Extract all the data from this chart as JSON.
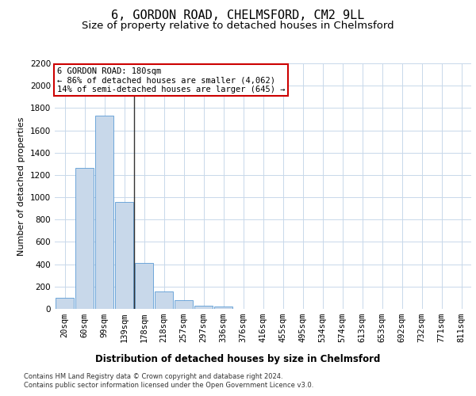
{
  "title": "6, GORDON ROAD, CHELMSFORD, CM2 9LL",
  "subtitle": "Size of property relative to detached houses in Chelmsford",
  "xlabel": "Distribution of detached houses by size in Chelmsford",
  "ylabel": "Number of detached properties",
  "footnote1": "Contains HM Land Registry data © Crown copyright and database right 2024.",
  "footnote2": "Contains public sector information licensed under the Open Government Licence v3.0.",
  "categories": [
    "20sqm",
    "60sqm",
    "99sqm",
    "139sqm",
    "178sqm",
    "218sqm",
    "257sqm",
    "297sqm",
    "336sqm",
    "376sqm",
    "416sqm",
    "455sqm",
    "495sqm",
    "534sqm",
    "574sqm",
    "613sqm",
    "653sqm",
    "692sqm",
    "732sqm",
    "771sqm",
    "811sqm"
  ],
  "values": [
    100,
    1260,
    1730,
    960,
    410,
    155,
    75,
    30,
    20,
    0,
    0,
    0,
    0,
    0,
    0,
    0,
    0,
    0,
    0,
    0,
    0
  ],
  "bar_color": "#c8d8ea",
  "bar_edge_color": "#5b9bd5",
  "vline_index": 4,
  "vline_color": "#333333",
  "annotation_line1": "6 GORDON ROAD: 180sqm",
  "annotation_line2": "← 86% of detached houses are smaller (4,062)",
  "annotation_line3": "14% of semi-detached houses are larger (645) →",
  "annotation_box_color": "#cc0000",
  "ylim": [
    0,
    2200
  ],
  "yticks": [
    0,
    200,
    400,
    600,
    800,
    1000,
    1200,
    1400,
    1600,
    1800,
    2000,
    2200
  ],
  "bg_color": "#ffffff",
  "grid_color": "#c8d8ea",
  "title_fontsize": 11,
  "subtitle_fontsize": 9.5,
  "axis_label_fontsize": 8.5,
  "tick_fontsize": 7.5,
  "ylabel_fontsize": 8
}
